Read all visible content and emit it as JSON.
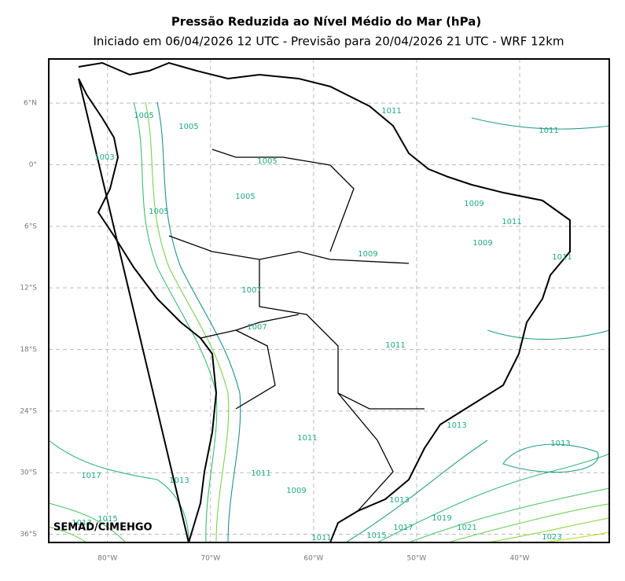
{
  "map": {
    "title": "Pressão Reduzida ao Nível Médio do Mar (hPa)",
    "subtitle": "Iniciado em 06/04/2026 12 UTC - Previsão para 20/04/2026 21 UTC - WRF 12km",
    "lon_range": [
      -85.7,
      -31.3
    ],
    "lat_range": [
      -36.8,
      10.3
    ],
    "yticks": [
      {
        "value": 6,
        "label": "6°N"
      },
      {
        "value": 0,
        "label": "0°"
      },
      {
        "value": -6,
        "label": "6°S"
      },
      {
        "value": -12,
        "label": "12°S"
      },
      {
        "value": -18,
        "label": "18°S"
      },
      {
        "value": -24,
        "label": "24°S"
      },
      {
        "value": -30,
        "label": "30°S"
      },
      {
        "value": -36,
        "label": "36°S"
      }
    ],
    "xticks": [
      {
        "value": -80,
        "label": "80°W"
      },
      {
        "value": -70,
        "label": "70°W"
      },
      {
        "value": -60,
        "label": "60°W"
      },
      {
        "value": -50,
        "label": "50°W"
      },
      {
        "value": -40,
        "label": "40°W"
      }
    ],
    "contour_labels": [
      "1011",
      "1005",
      "1005",
      "1011",
      "1003",
      "1005",
      "1005",
      "1005",
      "1009",
      "1011",
      "1009",
      "1011",
      "1009",
      "1007",
      "1007",
      "1011",
      "1013",
      "1013",
      "1011",
      "1011",
      "1017",
      "1013",
      "1009",
      "1013",
      "1015",
      "1019",
      "1021",
      "1017",
      "1015",
      "1011",
      "1023",
      "1013"
    ],
    "credit": "SEMAD/CIMEHGO"
  }
}
